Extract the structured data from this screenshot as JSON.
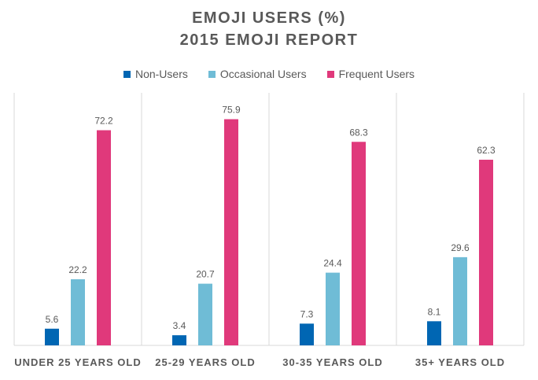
{
  "chart_data": {
    "type": "bar",
    "title": "EMOJI USERS (%)",
    "subtitle": "2015 EMOJI REPORT",
    "categories": [
      "UNDER 25 YEARS OLD",
      "25-29 YEARS OLD",
      "30-35 YEARS OLD",
      "35+ YEARS OLD"
    ],
    "series": [
      {
        "name": "Non-Users",
        "color": "#0066b3",
        "values": [
          5.6,
          3.4,
          7.3,
          8.1
        ]
      },
      {
        "name": "Occasional Users",
        "color": "#6fbcd6",
        "values": [
          22.2,
          20.7,
          24.4,
          29.6
        ]
      },
      {
        "name": "Frequent Users",
        "color": "#e0397b",
        "values": [
          72.2,
          75.9,
          68.3,
          62.3
        ]
      }
    ],
    "ylim": [
      0,
      80
    ],
    "legend_position": "top",
    "grid": false,
    "data_labels": true
  }
}
